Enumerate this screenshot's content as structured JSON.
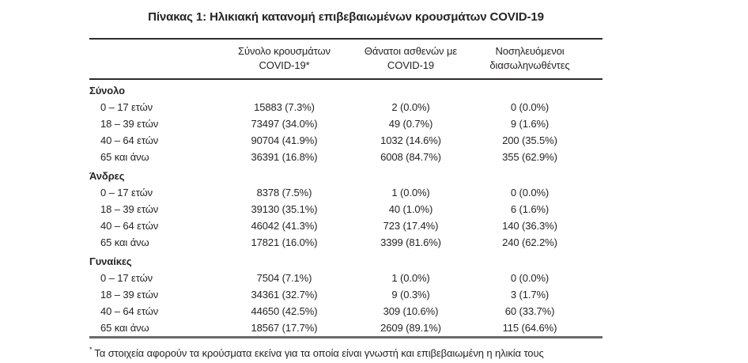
{
  "title": "Πίνακας 1: Ηλικιακή κατανομή επιβεβαιωμένων κρουσμάτων COVID-19",
  "header": {
    "cases": [
      "Σύνολο κρουσμάτων",
      "COVID-19*"
    ],
    "deaths": [
      "Θάνατοι ασθενών με",
      "COVID-19"
    ],
    "intubated": [
      "Νοσηλευόμενοι",
      "διασωληνωθέντες"
    ]
  },
  "sections": [
    {
      "label": "Σύνολο",
      "rows": [
        {
          "label": "0 – 17 ετών",
          "cases": "15883 (7.3%)",
          "deaths": "2 (0.0%)",
          "intubated": "0 (0.0%)"
        },
        {
          "label": "18 – 39 ετών",
          "cases": "73497 (34.0%)",
          "deaths": "49 (0.7%)",
          "intubated": "9 (1.6%)"
        },
        {
          "label": "40 – 64 ετών",
          "cases": "90704 (41.9%)",
          "deaths": "1032 (14.6%)",
          "intubated": "200 (35.5%)"
        },
        {
          "label": "65 και άνω",
          "cases": "36391 (16.8%)",
          "deaths": "6008 (84.7%)",
          "intubated": "355 (62.9%)"
        }
      ]
    },
    {
      "label": "Άνδρες",
      "rows": [
        {
          "label": "0 – 17 ετών",
          "cases": "8378 (7.5%)",
          "deaths": "1 (0.0%)",
          "intubated": "0 (0.0%)"
        },
        {
          "label": "18 – 39 ετών",
          "cases": "39130 (35.1%)",
          "deaths": "40 (1.0%)",
          "intubated": "6 (1.6%)"
        },
        {
          "label": "40 – 64 ετών",
          "cases": "46042 (41.3%)",
          "deaths": "723 (17.4%)",
          "intubated": "140 (36.3%)"
        },
        {
          "label": "65 και άνω",
          "cases": "17821 (16.0%)",
          "deaths": "3399 (81.6%)",
          "intubated": "240 (62.2%)"
        }
      ]
    },
    {
      "label": "Γυναίκες",
      "rows": [
        {
          "label": "0 – 17 ετών",
          "cases": "7504 (7.1%)",
          "deaths": "1 (0.0%)",
          "intubated": "0 (0.0%)"
        },
        {
          "label": "18 – 39 ετών",
          "cases": "34361 (32.7%)",
          "deaths": "9 (0.3%)",
          "intubated": "3 (1.7%)"
        },
        {
          "label": "40 – 64 ετών",
          "cases": "44650 (42.5%)",
          "deaths": "309 (10.6%)",
          "intubated": "60 (33.7%)"
        },
        {
          "label": "65 και άνω",
          "cases": "18567 (17.7%)",
          "deaths": "2609 (89.1%)",
          "intubated": "115 (64.6%)"
        }
      ]
    }
  ],
  "footnote": {
    "marker": "*",
    "text": "Τα στοιχεία αφορούν τα κρούσματα εκείνα για τα οποία είναι γνωστή και επιβεβαιωμένη η ηλικία τους"
  },
  "colors": {
    "text": "#262324",
    "rule_dark": "#2e2b2c",
    "rule_gray": "#6a6a6a"
  }
}
